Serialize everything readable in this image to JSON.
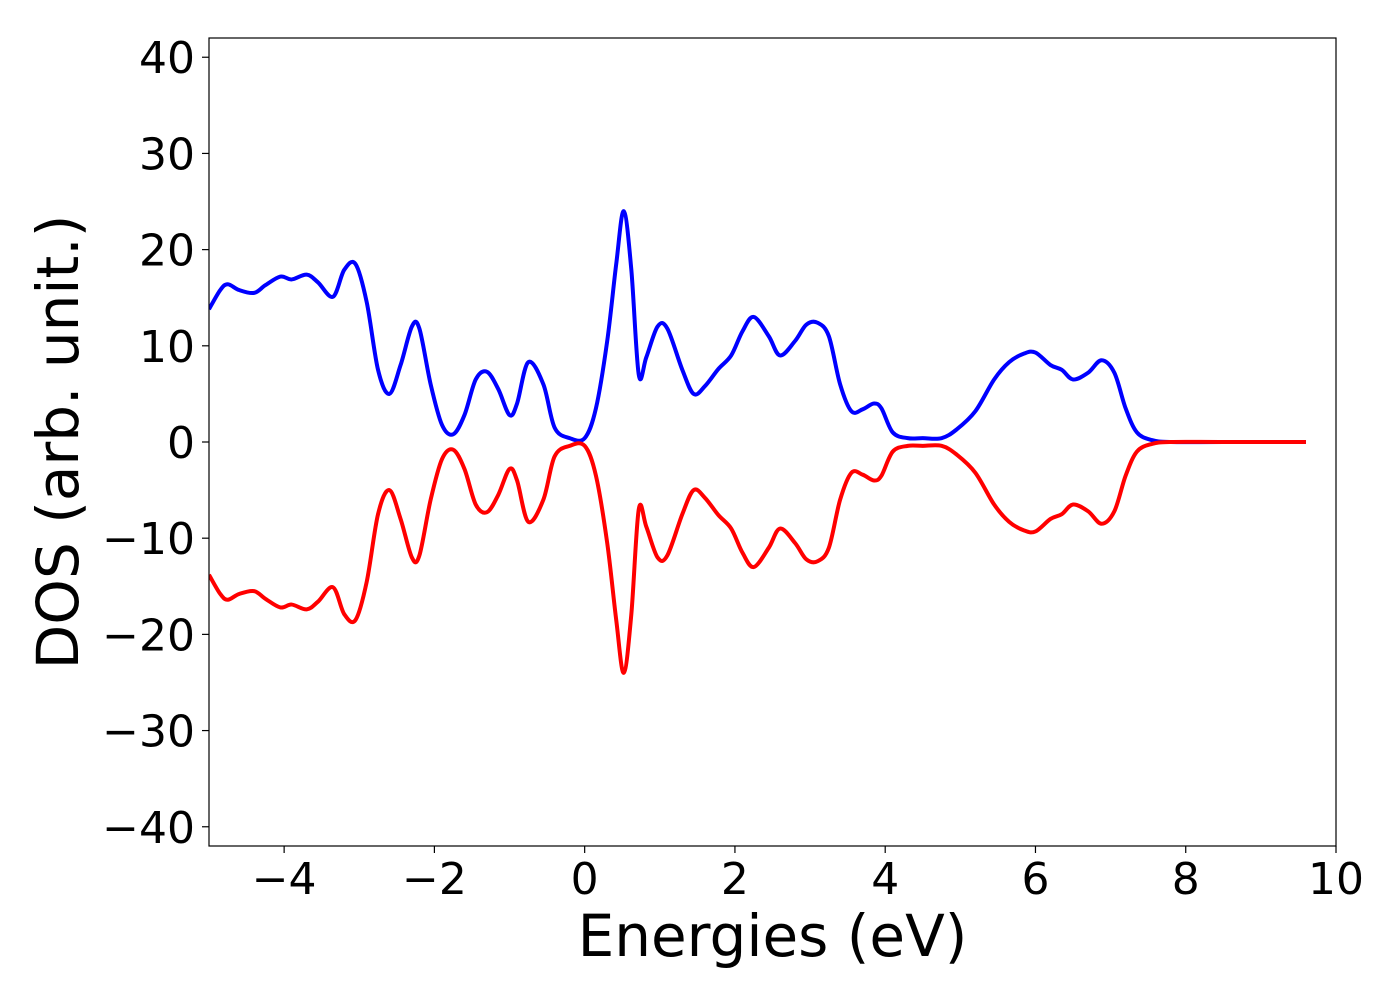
{
  "chart_data": {
    "type": "line",
    "title": "",
    "xlabel": "Energies (eV)",
    "ylabel": "DOS (arb. unit.)",
    "xlim": [
      -5,
      10
    ],
    "ylim": [
      -42,
      42
    ],
    "grid": false,
    "xticks": [
      -4,
      -2,
      0,
      2,
      4,
      6,
      8,
      10
    ],
    "yticks": [
      40,
      30,
      20,
      10,
      0,
      -10,
      -20,
      -30,
      -40
    ],
    "xtick_labels": [
      "−4",
      "−2",
      "0",
      "2",
      "4",
      "6",
      "8",
      "10"
    ],
    "ytick_labels": [
      "40",
      "30",
      "20",
      "10",
      "0",
      "−10",
      "−20",
      "−30",
      "−40"
    ],
    "series": [
      {
        "color": "#0000ff",
        "x": [
          -5.0,
          -4.85,
          -4.75,
          -4.6,
          -4.4,
          -4.25,
          -4.05,
          -3.9,
          -3.7,
          -3.55,
          -3.35,
          -3.2,
          -3.05,
          -2.9,
          -2.75,
          -2.6,
          -2.45,
          -2.3,
          -2.2,
          -2.05,
          -1.9,
          -1.75,
          -1.6,
          -1.45,
          -1.3,
          -1.15,
          -1.0,
          -0.9,
          -0.75,
          -0.55,
          -0.4,
          -0.2,
          0.0,
          0.15,
          0.3,
          0.42,
          0.52,
          0.62,
          0.72,
          0.82,
          0.97,
          1.1,
          1.3,
          1.45,
          1.6,
          1.78,
          1.95,
          2.1,
          2.25,
          2.45,
          2.6,
          2.8,
          2.95,
          3.1,
          3.25,
          3.4,
          3.55,
          3.7,
          3.85,
          3.95,
          4.1,
          4.3,
          4.5,
          4.75,
          4.95,
          5.2,
          5.45,
          5.65,
          5.85,
          6.0,
          6.2,
          6.35,
          6.5,
          6.7,
          6.88,
          7.05,
          7.2,
          7.35,
          7.55,
          7.8,
          8.5,
          9.6
        ],
        "y": [
          13.8,
          15.8,
          16.4,
          15.8,
          15.5,
          16.3,
          17.2,
          16.9,
          17.4,
          16.6,
          15.1,
          17.9,
          18.5,
          14.5,
          7.5,
          5.0,
          8.0,
          12.0,
          11.8,
          6.0,
          1.8,
          0.8,
          2.8,
          6.5,
          7.3,
          5.5,
          2.8,
          4.0,
          8.3,
          6.0,
          1.5,
          0.4,
          0.4,
          3.5,
          10.5,
          18.5,
          24.0,
          18.0,
          7.0,
          8.8,
          12.0,
          11.8,
          7.5,
          5.0,
          5.8,
          7.6,
          9.0,
          11.5,
          13.0,
          11.0,
          9.0,
          10.5,
          12.2,
          12.4,
          11.0,
          6.0,
          3.2,
          3.4,
          4.0,
          3.5,
          1.0,
          0.4,
          0.4,
          0.4,
          1.3,
          3.2,
          6.5,
          8.3,
          9.2,
          9.3,
          8.0,
          7.5,
          6.5,
          7.2,
          8.5,
          7.2,
          3.5,
          1.0,
          0.2,
          0.0,
          0.0,
          0.0
        ]
      },
      {
        "color": "#ff0000",
        "x": [
          -5.0,
          -4.85,
          -4.75,
          -4.6,
          -4.4,
          -4.25,
          -4.05,
          -3.9,
          -3.7,
          -3.55,
          -3.35,
          -3.2,
          -3.05,
          -2.9,
          -2.75,
          -2.6,
          -2.45,
          -2.3,
          -2.2,
          -2.05,
          -1.9,
          -1.75,
          -1.6,
          -1.45,
          -1.3,
          -1.15,
          -1.0,
          -0.9,
          -0.75,
          -0.55,
          -0.4,
          -0.2,
          0.0,
          0.15,
          0.3,
          0.42,
          0.52,
          0.62,
          0.72,
          0.82,
          0.97,
          1.1,
          1.3,
          1.45,
          1.6,
          1.78,
          1.95,
          2.1,
          2.25,
          2.45,
          2.6,
          2.8,
          2.95,
          3.1,
          3.25,
          3.4,
          3.55,
          3.7,
          3.85,
          3.95,
          4.1,
          4.3,
          4.5,
          4.75,
          4.95,
          5.2,
          5.45,
          5.65,
          5.85,
          6.0,
          6.2,
          6.35,
          6.5,
          6.7,
          6.88,
          7.05,
          7.2,
          7.35,
          7.55,
          7.8,
          8.5,
          9.6
        ],
        "y": [
          -13.8,
          -15.8,
          -16.4,
          -15.8,
          -15.5,
          -16.3,
          -17.2,
          -16.9,
          -17.4,
          -16.6,
          -15.1,
          -17.9,
          -18.5,
          -14.5,
          -7.5,
          -5.0,
          -8.0,
          -12.0,
          -11.8,
          -6.0,
          -1.8,
          -0.8,
          -2.8,
          -6.5,
          -7.3,
          -5.5,
          -2.8,
          -4.0,
          -8.3,
          -6.0,
          -1.5,
          -0.4,
          -0.4,
          -3.5,
          -10.5,
          -18.5,
          -24.0,
          -18.0,
          -7.0,
          -8.8,
          -12.0,
          -11.8,
          -7.5,
          -5.0,
          -5.8,
          -7.6,
          -9.0,
          -11.5,
          -13.0,
          -11.0,
          -9.0,
          -10.5,
          -12.2,
          -12.4,
          -11.0,
          -6.0,
          -3.2,
          -3.4,
          -4.0,
          -3.5,
          -1.0,
          -0.4,
          -0.4,
          -0.4,
          -1.3,
          -3.2,
          -6.5,
          -8.3,
          -9.2,
          -9.3,
          -8.0,
          -7.5,
          -6.5,
          -7.2,
          -8.5,
          -7.2,
          -3.5,
          -1.0,
          -0.2,
          0.0,
          0.0,
          0.0
        ]
      }
    ]
  }
}
